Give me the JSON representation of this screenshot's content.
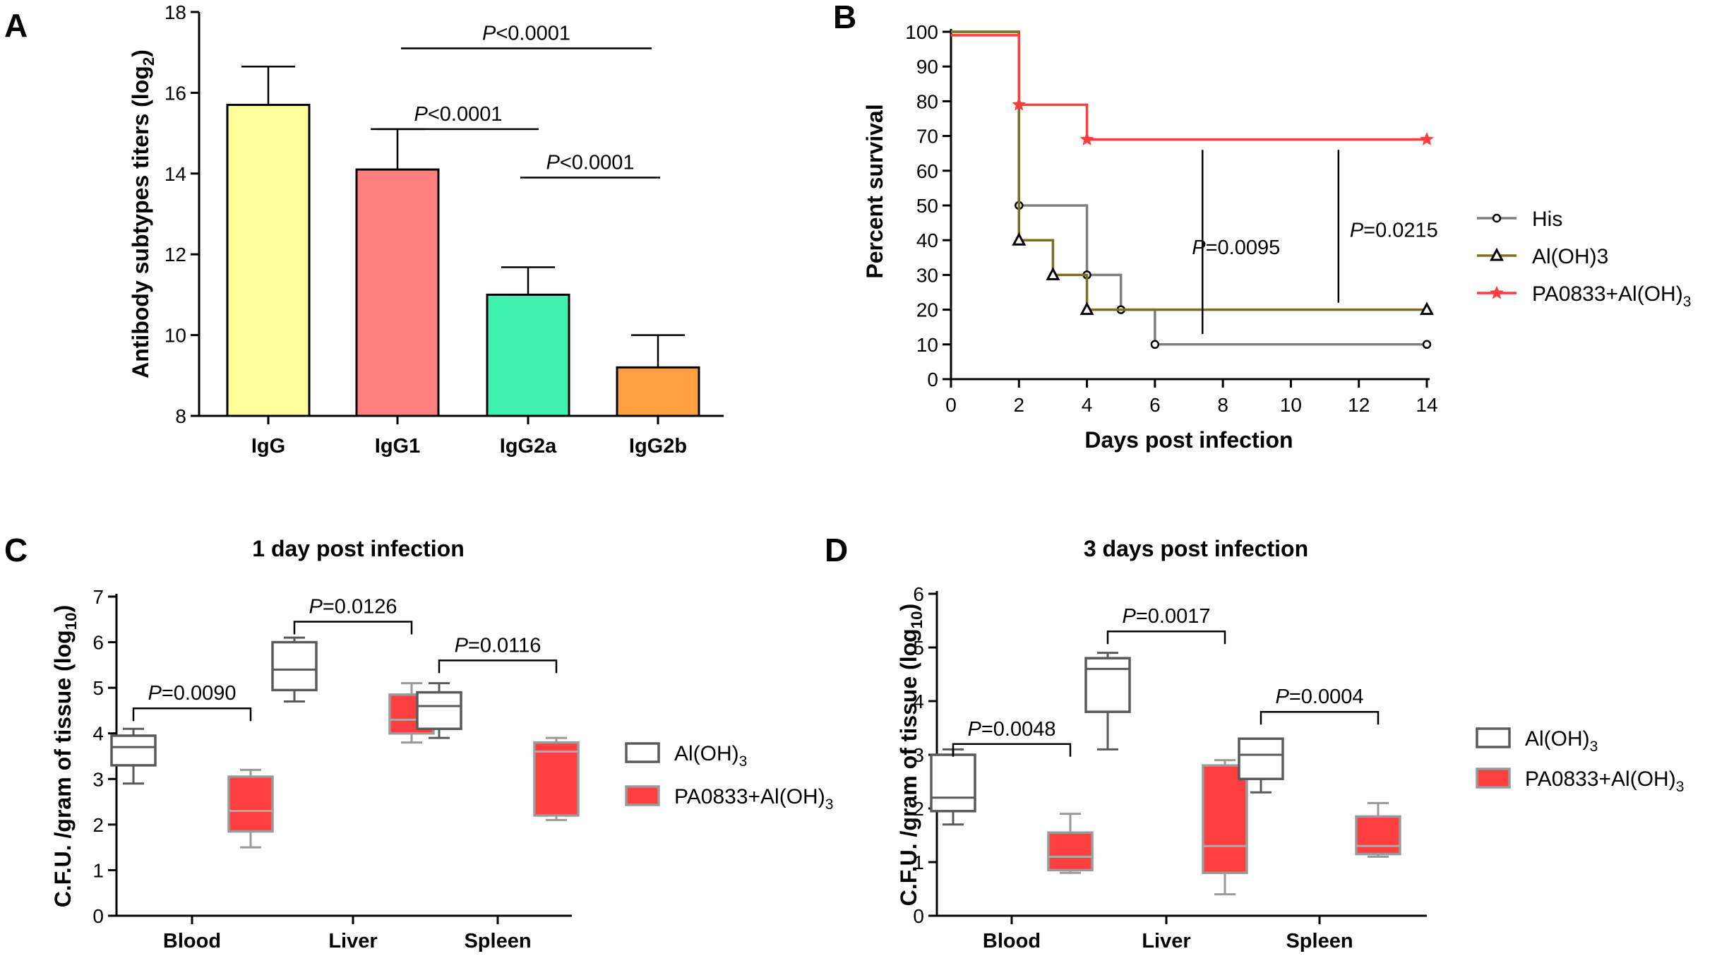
{
  "colors": {
    "axis": "#000000",
    "igg": "#ffff99",
    "igg1": "#ff7f7f",
    "igg2a": "#3ff2b0",
    "igg2b": "#ff9f3f",
    "his": "#7f7f7f",
    "aloh3": "#7f6f1f",
    "pa0833": "#ff3f3f",
    "box_dark": "#5a5a5a",
    "box_red_fill": "#ff3f3f",
    "box_red_edge": "#9a9a9a"
  },
  "chart_data": [
    {
      "panel": "A",
      "type": "bar",
      "title": "",
      "xlabel": "",
      "ylabel_main": "Antibody subtypes titers (log",
      "ylabel_sub": "2",
      "ylabel_end": ")",
      "ylim": [
        8,
        18
      ],
      "yticks": [
        "8",
        "10",
        "12",
        "14",
        "16",
        "18"
      ],
      "categories": [
        "IgG",
        "IgG1",
        "IgG2a",
        "IgG2b"
      ],
      "values": [
        15.7,
        14.1,
        11.0,
        9.2
      ],
      "errors": [
        0.95,
        1.0,
        0.68,
        0.8
      ],
      "significance": [
        {
          "from": 1,
          "to": 3,
          "y": 17.1,
          "p_italic": "P",
          "p_rest": "<0.0001"
        },
        {
          "from": 1,
          "to": 2,
          "y": 15.1,
          "p_italic": "P",
          "p_rest": "<0.0001"
        },
        {
          "from": 2,
          "to": 3,
          "y": 13.9,
          "p_italic": "P",
          "p_rest": "<0.0001"
        }
      ]
    },
    {
      "panel": "B",
      "type": "line",
      "subtype": "survival",
      "xlabel": "Days post infection",
      "ylabel": "Percent survival",
      "xlim": [
        0,
        14
      ],
      "ylim": [
        0,
        100
      ],
      "xticks": [
        "0",
        "2",
        "4",
        "6",
        "8",
        "10",
        "12",
        "14"
      ],
      "yticks": [
        "0",
        "10",
        "20",
        "30",
        "40",
        "50",
        "60",
        "70",
        "80",
        "90",
        "100"
      ],
      "series": [
        {
          "name": "His",
          "marker": "circle",
          "x": [
            0,
            2,
            4,
            5,
            6,
            14
          ],
          "values": [
            100,
            50,
            30,
            20,
            10,
            10
          ],
          "markers_x": [
            2,
            4,
            5,
            6,
            14
          ],
          "markers_y": [
            50,
            30,
            20,
            10,
            10
          ]
        },
        {
          "name": "Al(OH)3",
          "marker": "triangle",
          "x": [
            0,
            2,
            3,
            4,
            14
          ],
          "values": [
            100,
            40,
            30,
            20,
            20
          ],
          "markers_x": [
            2,
            3,
            4,
            14
          ],
          "markers_y": [
            40,
            30,
            20,
            20
          ]
        },
        {
          "name": "PA0833+Al(OH)",
          "name_sub": "3",
          "marker": "star",
          "x": [
            0,
            2,
            4,
            14
          ],
          "values": [
            99,
            79,
            69,
            69
          ],
          "markers_x": [
            2,
            4,
            14
          ],
          "markers_y": [
            79,
            69,
            69
          ]
        }
      ],
      "annotations": [
        {
          "x": 7.4,
          "y_top": 66,
          "y_bottom": 13,
          "p_italic": "P",
          "p_rest": "=0.0095"
        },
        {
          "x": 11.4,
          "y_top": 66,
          "y_bottom": 22,
          "p_italic": "P",
          "p_rest": "=0.0215"
        }
      ]
    },
    {
      "panel": "C",
      "type": "box",
      "title": "1 day post infection",
      "ylabel_main": "C.F.U. /gram of tissue (log",
      "ylabel_sub": "10",
      "ylabel_end": ")",
      "ylim": [
        0,
        7
      ],
      "yticks": [
        "0",
        "1",
        "2",
        "3",
        "4",
        "5",
        "6",
        "7"
      ],
      "categories": [
        "Blood",
        "Liver",
        "Spleen"
      ],
      "series": [
        {
          "name": "Al(OH)",
          "name_sub": "3",
          "boxes": [
            {
              "min": 2.9,
              "q1": 3.3,
              "median": 3.7,
              "q3": 3.95,
              "max": 4.1
            },
            {
              "min": 4.7,
              "q1": 4.95,
              "median": 5.4,
              "q3": 6.0,
              "max": 6.1
            },
            {
              "min": 3.9,
              "q1": 4.1,
              "median": 4.6,
              "q3": 4.9,
              "max": 5.1
            }
          ]
        },
        {
          "name": "PA0833+Al(OH)",
          "name_sub": "3",
          "boxes": [
            {
              "min": 1.5,
              "q1": 1.85,
              "median": 2.3,
              "q3": 3.05,
              "max": 3.2
            },
            {
              "min": 3.8,
              "q1": 4.0,
              "median": 4.3,
              "q3": 4.85,
              "max": 5.1
            },
            {
              "min": 2.1,
              "q1": 2.2,
              "median": 3.6,
              "q3": 3.8,
              "max": 3.9
            }
          ]
        }
      ],
      "significance": [
        {
          "group": 0,
          "y": 4.55,
          "p_italic": "P",
          "p_rest": "=0.0090"
        },
        {
          "group": 1,
          "y": 6.45,
          "p_italic": "P",
          "p_rest": "=0.0126"
        },
        {
          "group": 2,
          "y": 5.6,
          "p_italic": "P",
          "p_rest": "=0.0116"
        }
      ]
    },
    {
      "panel": "D",
      "type": "box",
      "title": "3 days post infection",
      "ylabel_main": "C.F.U. /gram of tissue (log",
      "ylabel_sub": "10",
      "ylabel_end": ")",
      "ylim": [
        0,
        6
      ],
      "yticks": [
        "0",
        "1",
        "2",
        "3",
        "4",
        "5",
        "6"
      ],
      "categories": [
        "Blood",
        "Liver",
        "Spleen"
      ],
      "series": [
        {
          "name": "Al(OH)",
          "name_sub": "3",
          "boxes": [
            {
              "min": 1.7,
              "q1": 1.95,
              "median": 2.2,
              "q3": 3.0,
              "max": 3.1
            },
            {
              "min": 3.1,
              "q1": 3.8,
              "median": 4.6,
              "q3": 4.8,
              "max": 4.9
            },
            {
              "min": 2.3,
              "q1": 2.55,
              "median": 3.0,
              "q3": 3.3,
              "max": 3.3
            }
          ]
        },
        {
          "name": "PA0833+Al(OH)",
          "name_sub": "3",
          "boxes": [
            {
              "min": 0.8,
              "q1": 0.85,
              "median": 1.1,
              "q3": 1.55,
              "max": 1.9
            },
            {
              "min": 0.4,
              "q1": 0.8,
              "median": 1.3,
              "q3": 2.8,
              "max": 2.9
            },
            {
              "min": 1.1,
              "q1": 1.15,
              "median": 1.3,
              "q3": 1.85,
              "max": 2.1
            }
          ]
        }
      ],
      "significance": [
        {
          "group": 0,
          "y": 3.2,
          "p_italic": "P",
          "p_rest": "=0.0048"
        },
        {
          "group": 1,
          "y": 5.3,
          "p_italic": "P",
          "p_rest": "=0.0017"
        },
        {
          "group": 2,
          "y": 3.8,
          "p_italic": "P",
          "p_rest": "=0.0004"
        }
      ]
    }
  ]
}
